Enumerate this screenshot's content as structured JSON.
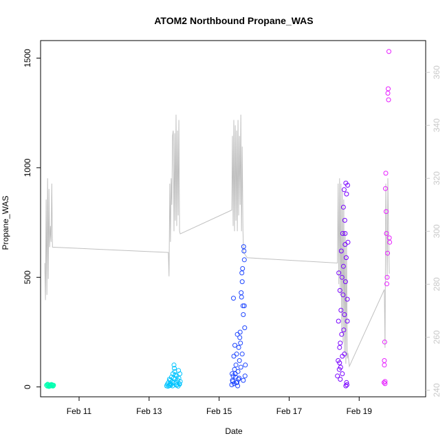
{
  "chart_data": {
    "type": "scatter",
    "title": "ATOM2 Northbound Propane_WAS",
    "xlabel": "Date",
    "ylabel": "Propane_WAS",
    "x_tick_labels": [
      "Feb 11",
      "Feb 13",
      "Feb 15",
      "Feb 17",
      "Feb 19"
    ],
    "x_ticks_day": [
      11,
      13,
      15,
      17,
      19
    ],
    "xlim_day": [
      9.9,
      20.9
    ],
    "ylim": [
      -45,
      1580
    ],
    "y_ticks": [
      0,
      500,
      1000,
      1500
    ],
    "y2_ticks": [
      240,
      260,
      280,
      300,
      320,
      340,
      360
    ],
    "y2lim": [
      237.5,
      372
    ],
    "grid": false,
    "legend": "none",
    "colors": {
      "axis": "#000000",
      "right_axis": "#c8c8c8",
      "secondary_line": "#c0c0c0",
      "flight1": "#00ffb0",
      "flight2": "#00c4ff",
      "flight3": "#1e46ff",
      "flight4": "#7800ff",
      "flight5": "#e61cff"
    },
    "series": [
      {
        "color": "#00ffb0",
        "points": [
          [
            10.07,
            8
          ],
          [
            10.09,
            4
          ],
          [
            10.11,
            10
          ],
          [
            10.13,
            6
          ],
          [
            10.15,
            3
          ],
          [
            10.17,
            9
          ],
          [
            10.19,
            5
          ],
          [
            10.21,
            11
          ],
          [
            10.23,
            7
          ],
          [
            10.25,
            4
          ],
          [
            10.27,
            8
          ],
          [
            10.1,
            12
          ],
          [
            10.14,
            2
          ],
          [
            10.18,
            6
          ],
          [
            10.22,
            10
          ],
          [
            10.26,
            5
          ]
        ]
      },
      {
        "color": "#00c4ff",
        "points": [
          [
            13.5,
            5
          ],
          [
            13.52,
            12
          ],
          [
            13.55,
            20
          ],
          [
            13.57,
            8
          ],
          [
            13.6,
            30
          ],
          [
            13.62,
            15
          ],
          [
            13.64,
            45
          ],
          [
            13.66,
            25
          ],
          [
            13.68,
            60
          ],
          [
            13.7,
            40
          ],
          [
            13.71,
            100
          ],
          [
            13.72,
            85
          ],
          [
            13.73,
            70
          ],
          [
            13.74,
            35
          ],
          [
            13.75,
            55
          ],
          [
            13.77,
            20
          ],
          [
            13.79,
            50
          ],
          [
            13.8,
            10
          ],
          [
            13.82,
            30
          ],
          [
            13.84,
            75
          ],
          [
            13.85,
            40
          ],
          [
            13.86,
            15
          ],
          [
            13.88,
            60
          ],
          [
            13.89,
            25
          ],
          [
            13.54,
            3
          ],
          [
            13.59,
            6
          ],
          [
            13.63,
            10
          ],
          [
            13.67,
            5
          ],
          [
            13.78,
            8
          ],
          [
            13.83,
            4
          ],
          [
            13.87,
            12
          ],
          [
            13.58,
            35
          ],
          [
            13.69,
            18
          ]
        ]
      },
      {
        "color": "#1e46ff",
        "points": [
          [
            15.36,
            10
          ],
          [
            15.38,
            30
          ],
          [
            15.4,
            50
          ],
          [
            15.41,
            405
          ],
          [
            15.42,
            140
          ],
          [
            15.44,
            80
          ],
          [
            15.45,
            190
          ],
          [
            15.46,
            60
          ],
          [
            15.48,
            100
          ],
          [
            15.49,
            20
          ],
          [
            15.5,
            150
          ],
          [
            15.52,
            240
          ],
          [
            15.53,
            5
          ],
          [
            15.54,
            70
          ],
          [
            15.56,
            180
          ],
          [
            15.57,
            40
          ],
          [
            15.58,
            120
          ],
          [
            15.59,
            225
          ],
          [
            15.6,
            250
          ],
          [
            15.61,
            200
          ],
          [
            15.62,
            90
          ],
          [
            15.63,
            430
          ],
          [
            15.64,
            410
          ],
          [
            15.65,
            520
          ],
          [
            15.66,
            480
          ],
          [
            15.67,
            540
          ],
          [
            15.68,
            370
          ],
          [
            15.69,
            30
          ],
          [
            15.7,
            640
          ],
          [
            15.71,
            620
          ],
          [
            15.72,
            580
          ],
          [
            15.73,
            270
          ],
          [
            15.74,
            50
          ],
          [
            15.75,
            100
          ],
          [
            15.51,
            20
          ],
          [
            15.55,
            35
          ],
          [
            15.43,
            15
          ],
          [
            15.47,
            45
          ],
          [
            15.39,
            25
          ],
          [
            15.37,
            60
          ],
          [
            15.66,
            150
          ],
          [
            15.69,
            330
          ],
          [
            15.72,
            370
          ]
        ]
      },
      {
        "color": "#7800ff",
        "points": [
          [
            18.38,
            50
          ],
          [
            18.4,
            120
          ],
          [
            18.41,
            300
          ],
          [
            18.42,
            520
          ],
          [
            18.43,
            80
          ],
          [
            18.44,
            180
          ],
          [
            18.45,
            440
          ],
          [
            18.46,
            200
          ],
          [
            18.47,
            90
          ],
          [
            18.48,
            350
          ],
          [
            18.49,
            620
          ],
          [
            18.5,
            240
          ],
          [
            18.51,
            500
          ],
          [
            18.52,
            140
          ],
          [
            18.53,
            700
          ],
          [
            18.54,
            420
          ],
          [
            18.55,
            820
          ],
          [
            18.56,
            260
          ],
          [
            18.57,
            900
          ],
          [
            18.58,
            330
          ],
          [
            18.59,
            760
          ],
          [
            18.6,
            650
          ],
          [
            18.61,
            480
          ],
          [
            18.62,
            930
          ],
          [
            18.63,
            590
          ],
          [
            18.64,
            880
          ],
          [
            18.65,
            10
          ],
          [
            18.66,
            400
          ],
          [
            18.67,
            920
          ],
          [
            18.68,
            660
          ],
          [
            18.62,
            5
          ],
          [
            18.64,
            20
          ],
          [
            18.46,
            35
          ],
          [
            18.52,
            60
          ],
          [
            18.58,
            150
          ],
          [
            18.6,
            700
          ],
          [
            18.55,
            550
          ],
          [
            18.66,
            300
          ],
          [
            18.44,
            110
          ]
        ]
      },
      {
        "color": "#e61cff",
        "points": [
          [
            19.71,
            20
          ],
          [
            19.72,
            120
          ],
          [
            19.73,
            205
          ],
          [
            19.74,
            15
          ],
          [
            19.75,
            905
          ],
          [
            19.76,
            975
          ],
          [
            19.77,
            800
          ],
          [
            19.78,
            700
          ],
          [
            19.79,
            470
          ],
          [
            19.8,
            500
          ],
          [
            19.81,
            610
          ],
          [
            19.82,
            1340
          ],
          [
            19.83,
            1360
          ],
          [
            19.84,
            1310
          ],
          [
            19.85,
            1530
          ],
          [
            19.86,
            680
          ],
          [
            19.87,
            660
          ],
          [
            19.72,
            100
          ],
          [
            19.74,
            25
          ]
        ]
      }
    ],
    "secondary_series": {
      "axis": "right",
      "color": "#c0c0c0",
      "points": [
        [
          10.02,
          288
        ],
        [
          10.04,
          274
        ],
        [
          10.06,
          312
        ],
        [
          10.08,
          276
        ],
        [
          10.1,
          320
        ],
        [
          10.12,
          282
        ],
        [
          10.14,
          316
        ],
        [
          10.16,
          294
        ],
        [
          10.18,
          302
        ],
        [
          10.2,
          296
        ],
        [
          10.22,
          318
        ],
        [
          10.24,
          294
        ],
        [
          13.55,
          292
        ],
        [
          13.57,
          283
        ],
        [
          13.59,
          318
        ],
        [
          13.61,
          296
        ],
        [
          13.63,
          320
        ],
        [
          13.65,
          310
        ],
        [
          13.67,
          336
        ],
        [
          13.69,
          338
        ],
        [
          13.71,
          300
        ],
        [
          13.73,
          337
        ],
        [
          13.75,
          304
        ],
        [
          13.77,
          344
        ],
        [
          13.79,
          302
        ],
        [
          13.81,
          338
        ],
        [
          13.83,
          306
        ],
        [
          13.85,
          342
        ],
        [
          13.87,
          300
        ],
        [
          13.89,
          299
        ],
        [
          15.36,
          308
        ],
        [
          15.38,
          336
        ],
        [
          15.4,
          302
        ],
        [
          15.42,
          342
        ],
        [
          15.44,
          300
        ],
        [
          15.46,
          340
        ],
        [
          15.48,
          304
        ],
        [
          15.5,
          338
        ],
        [
          15.52,
          300
        ],
        [
          15.54,
          342
        ],
        [
          15.56,
          306
        ],
        [
          15.58,
          336
        ],
        [
          15.6,
          310
        ],
        [
          15.62,
          344
        ],
        [
          15.64,
          300
        ],
        [
          15.66,
          332
        ],
        [
          15.68,
          300
        ],
        [
          15.7,
          292
        ],
        [
          15.8,
          290
        ],
        [
          18.38,
          288
        ],
        [
          18.4,
          318
        ],
        [
          18.42,
          280
        ],
        [
          18.44,
          320
        ],
        [
          18.46,
          276
        ],
        [
          18.48,
          318
        ],
        [
          18.5,
          262
        ],
        [
          18.52,
          316
        ],
        [
          18.54,
          258
        ],
        [
          18.56,
          312
        ],
        [
          18.58,
          254
        ],
        [
          18.6,
          300
        ],
        [
          18.62,
          250
        ],
        [
          18.64,
          296
        ],
        [
          18.66,
          252
        ],
        [
          18.68,
          254
        ],
        [
          18.72,
          249
        ],
        [
          19.72,
          278
        ],
        [
          19.74,
          256
        ],
        [
          19.76,
          318
        ],
        [
          19.78,
          300
        ],
        [
          19.8,
          282
        ],
        [
          19.82,
          320
        ],
        [
          19.84,
          300
        ],
        [
          19.86,
          284
        ]
      ]
    }
  }
}
